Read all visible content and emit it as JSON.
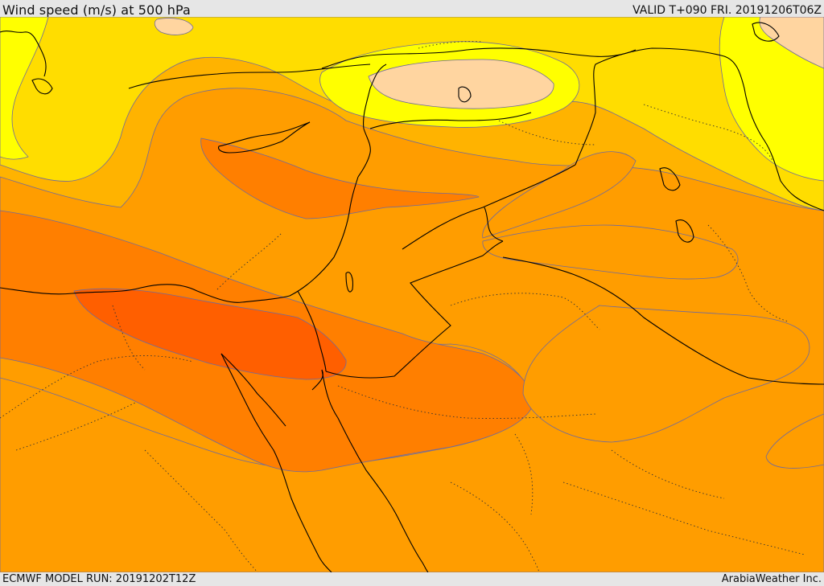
{
  "header": {
    "title": "Wind speed (m/s) at 500 hPa",
    "valid": "VALID T+090 FRI. 20191206T06Z"
  },
  "footer": {
    "model_run": "ECMWF MODEL RUN: 20191202T12Z",
    "credit": "ArabiaWeather Inc."
  },
  "map": {
    "colors": {
      "band_10_15": "#ffd5a0",
      "band_15_20": "#ffff00",
      "band_20_25": "#ffdd00",
      "band_25_30": "#ffb300",
      "band_30_35": "#ff9d00",
      "band_35_40": "#ff7f00",
      "band_40_45": "#ff5f00",
      "contour": "#6e6a9e",
      "coast": "#000000"
    }
  }
}
